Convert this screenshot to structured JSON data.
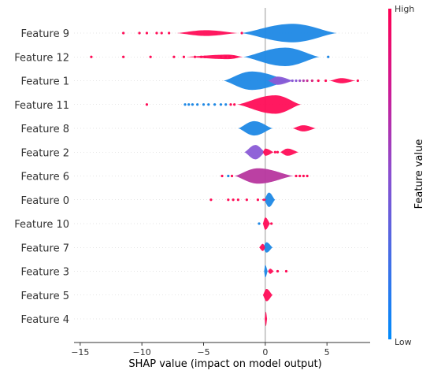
{
  "chart_data": {
    "type": "violin",
    "title": "",
    "xlabel": "SHAP value (impact on model output)",
    "ylabel": "",
    "xlim": [
      -15.5,
      8.5
    ],
    "xticks": [
      -15,
      -10,
      -5,
      0,
      5
    ],
    "xtick_labels": [
      "−15",
      "−10",
      "−5",
      "0",
      "5"
    ],
    "colorbar": {
      "label": "Feature value",
      "high_label": "High",
      "low_label": "Low",
      "high_color": "#ff0052",
      "low_color": "#008bfb"
    },
    "features": [
      {
        "name": "Feature 9",
        "violins": [
          {
            "min": -7.2,
            "max": -2.2,
            "peak": -4.8,
            "height": 0.28,
            "color": "#ff0d57"
          },
          {
            "min": -2.0,
            "max": 5.8,
            "peak": 2.2,
            "height": 0.9,
            "color": "#1e88e5"
          }
        ],
        "points": [
          {
            "x": -11.5,
            "c": "#ff0d57"
          },
          {
            "x": -10.2,
            "c": "#ff0d57"
          },
          {
            "x": -9.6,
            "c": "#ff0d57"
          },
          {
            "x": -8.8,
            "c": "#ff0d57"
          },
          {
            "x": -8.4,
            "c": "#ff0d57"
          },
          {
            "x": -7.8,
            "c": "#ff0d57"
          },
          {
            "x": -1.9,
            "c": "#ff0d57"
          }
        ]
      },
      {
        "name": "Feature 12",
        "violins": [
          {
            "min": -6.5,
            "max": -1.8,
            "peak": -3.0,
            "height": 0.22,
            "color": "#ff0d57"
          },
          {
            "min": -1.8,
            "max": 4.4,
            "peak": 1.6,
            "height": 0.9,
            "color": "#1e88e5"
          }
        ],
        "points": [
          {
            "x": -14.1,
            "c": "#ff0d57"
          },
          {
            "x": -11.5,
            "c": "#ff0d57"
          },
          {
            "x": -9.3,
            "c": "#ff0d57"
          },
          {
            "x": -7.4,
            "c": "#ff0d57"
          },
          {
            "x": -6.6,
            "c": "#ff0d57"
          },
          {
            "x": -5.7,
            "c": "#ff0d57"
          },
          {
            "x": -5.2,
            "c": "#ff0d57"
          },
          {
            "x": -4.9,
            "c": "#ff0d57"
          },
          {
            "x": -3.6,
            "c": "#ff0d57"
          },
          {
            "x": -3.2,
            "c": "#ff0d57"
          },
          {
            "x": -2.9,
            "c": "#ff0d57"
          },
          {
            "x": -2.5,
            "c": "#ff0d57"
          },
          {
            "x": 5.1,
            "c": "#1e88e5"
          }
        ]
      },
      {
        "name": "Feature 1",
        "violins": [
          {
            "min": -3.4,
            "max": 2.1,
            "peak": -1.1,
            "height": 0.9,
            "color": "#1e88e5"
          },
          {
            "min": 0.2,
            "max": 2.3,
            "peak": 1.0,
            "height": 0.4,
            "color": "#8a5bd6"
          },
          {
            "min": 5.2,
            "max": 7.3,
            "peak": 6.2,
            "height": 0.25,
            "color": "#ff0d57"
          }
        ],
        "points": [
          {
            "x": 2.2,
            "c": "#8a5bd6"
          },
          {
            "x": 2.5,
            "c": "#8a5bd6"
          },
          {
            "x": 2.8,
            "c": "#9b4fc8"
          },
          {
            "x": 3.1,
            "c": "#b23fb0"
          },
          {
            "x": 3.4,
            "c": "#c83396"
          },
          {
            "x": 3.8,
            "c": "#d8287e"
          },
          {
            "x": 4.3,
            "c": "#ff0d57"
          },
          {
            "x": 4.9,
            "c": "#ff0d57"
          },
          {
            "x": 7.5,
            "c": "#ff0d57"
          }
        ]
      },
      {
        "name": "Feature 11",
        "violins": [
          {
            "min": -2.3,
            "max": 2.9,
            "peak": 0.8,
            "height": 0.9,
            "color": "#ff0d57"
          }
        ],
        "points": [
          {
            "x": -9.6,
            "c": "#ff0d57"
          },
          {
            "x": -6.5,
            "c": "#1e88e5"
          },
          {
            "x": -6.2,
            "c": "#1e88e5"
          },
          {
            "x": -5.9,
            "c": "#1e88e5"
          },
          {
            "x": -5.5,
            "c": "#1e88e5"
          },
          {
            "x": -5.0,
            "c": "#1e88e5"
          },
          {
            "x": -4.6,
            "c": "#1e88e5"
          },
          {
            "x": -4.1,
            "c": "#1e88e5"
          },
          {
            "x": -3.6,
            "c": "#1e88e5"
          },
          {
            "x": -3.2,
            "c": "#1e88e5"
          },
          {
            "x": -2.8,
            "c": "#ff0d57"
          },
          {
            "x": -2.5,
            "c": "#ff0d57"
          }
        ]
      },
      {
        "name": "Feature 8",
        "violins": [
          {
            "min": -2.2,
            "max": 0.6,
            "peak": -0.9,
            "height": 0.7,
            "color": "#1e88e5"
          },
          {
            "min": 2.2,
            "max": 4.1,
            "peak": 3.1,
            "height": 0.3,
            "color": "#ff0d57"
          }
        ],
        "points": []
      },
      {
        "name": "Feature 2",
        "violins": [
          {
            "min": -1.7,
            "max": 0.0,
            "peak": -0.8,
            "height": 0.7,
            "color": "#8a5bd6"
          },
          {
            "min": -0.2,
            "max": 0.7,
            "peak": 0.0,
            "height": 0.35,
            "color": "#ff0d57"
          },
          {
            "min": 1.2,
            "max": 2.7,
            "peak": 1.8,
            "height": 0.35,
            "color": "#ff0d57"
          }
        ],
        "points": [
          {
            "x": 0.8,
            "c": "#ff0d57"
          },
          {
            "x": 1.0,
            "c": "#ff0d57"
          }
        ]
      },
      {
        "name": "Feature 6",
        "violins": [
          {
            "min": -2.5,
            "max": 2.3,
            "peak": -0.6,
            "height": 0.75,
            "color": "#b7369e"
          }
        ],
        "points": [
          {
            "x": -3.5,
            "c": "#ff0d57"
          },
          {
            "x": -3.0,
            "c": "#1e88e5"
          },
          {
            "x": -2.7,
            "c": "#ff0d57"
          },
          {
            "x": 2.5,
            "c": "#ff0d57"
          },
          {
            "x": 2.8,
            "c": "#ff0d57"
          },
          {
            "x": 3.1,
            "c": "#ff0d57"
          },
          {
            "x": 3.4,
            "c": "#ff0d57"
          }
        ]
      },
      {
        "name": "Feature 0",
        "violins": [
          {
            "min": -0.1,
            "max": 0.8,
            "peak": 0.3,
            "height": 0.7,
            "color": "#1e88e5"
          },
          {
            "min": -0.3,
            "max": 0.1,
            "peak": -0.1,
            "height": 0.12,
            "color": "#ff0d57"
          }
        ],
        "points": [
          {
            "x": -4.4,
            "c": "#ff0d57"
          },
          {
            "x": -3.0,
            "c": "#ff0d57"
          },
          {
            "x": -2.6,
            "c": "#ff0d57"
          },
          {
            "x": -2.2,
            "c": "#ff0d57"
          },
          {
            "x": -1.5,
            "c": "#ff0d57"
          },
          {
            "x": -0.6,
            "c": "#ff0d57"
          }
        ]
      },
      {
        "name": "Feature 10",
        "violins": [
          {
            "min": -0.2,
            "max": 0.4,
            "peak": 0.0,
            "height": 0.6,
            "color": "#ff0d57"
          }
        ],
        "points": [
          {
            "x": -0.5,
            "c": "#1e88e5"
          },
          {
            "x": 0.5,
            "c": "#ff0d57"
          }
        ]
      },
      {
        "name": "Feature 7",
        "violins": [
          {
            "min": -0.2,
            "max": 0.6,
            "peak": 0.1,
            "height": 0.5,
            "color": "#1e88e5"
          },
          {
            "min": -0.5,
            "max": 0.0,
            "peak": -0.2,
            "height": 0.35,
            "color": "#ff0d57"
          }
        ],
        "points": []
      },
      {
        "name": "Feature 3",
        "violins": [
          {
            "min": -0.1,
            "max": 0.2,
            "peak": 0.0,
            "height": 0.6,
            "color": "#1e88e5"
          },
          {
            "min": 0.2,
            "max": 0.7,
            "peak": 0.4,
            "height": 0.25,
            "color": "#ff0d57"
          }
        ],
        "points": [
          {
            "x": 1.0,
            "c": "#ff0d57"
          },
          {
            "x": 1.7,
            "c": "#ff0d57"
          }
        ]
      },
      {
        "name": "Feature 5",
        "violins": [
          {
            "min": -0.2,
            "max": 0.6,
            "peak": 0.1,
            "height": 0.6,
            "color": "#ff0d57"
          }
        ],
        "points": []
      },
      {
        "name": "Feature 4",
        "violins": [
          {
            "min": -0.05,
            "max": 0.15,
            "peak": 0.05,
            "height": 0.7,
            "color": "#ff0d57"
          }
        ],
        "points": []
      }
    ]
  }
}
